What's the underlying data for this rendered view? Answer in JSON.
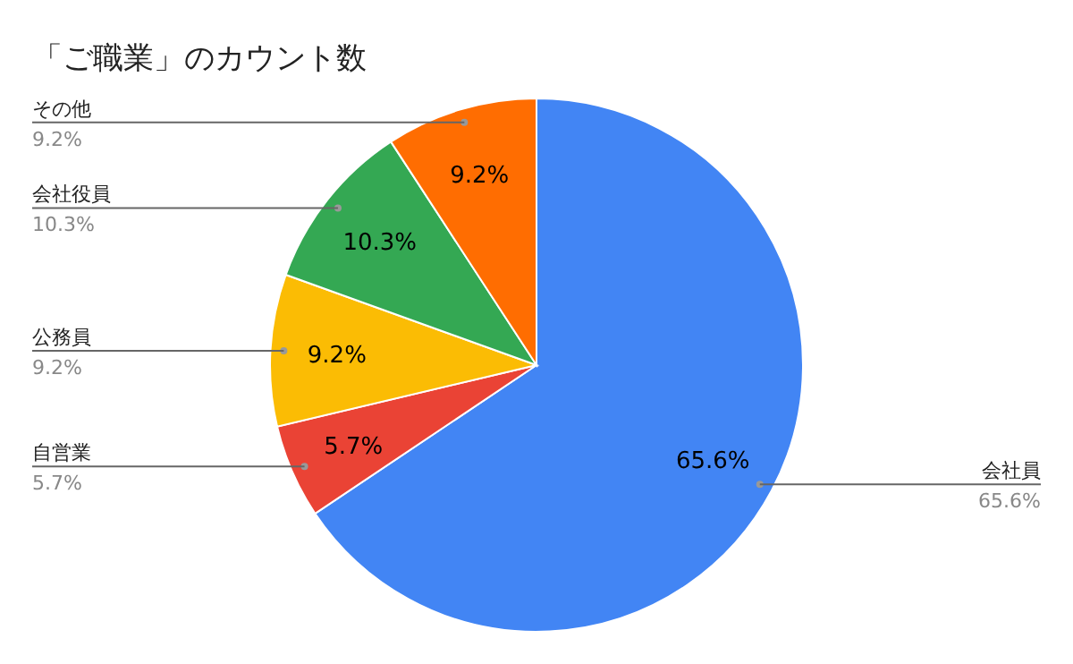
{
  "chart_data": {
    "type": "pie",
    "title": "「ご職業」のカウント数",
    "categories": [
      "会社員",
      "自営業",
      "公務員",
      "会社役員",
      "その他"
    ],
    "values": [
      65.6,
      5.7,
      9.2,
      10.3,
      9.2
    ],
    "colors": [
      "#4285f4",
      "#ea4335",
      "#fbbc04",
      "#34a853",
      "#ff6d01"
    ],
    "value_labels": [
      "65.6%",
      "5.7%",
      "9.2%",
      "10.3%",
      "9.2%"
    ]
  }
}
